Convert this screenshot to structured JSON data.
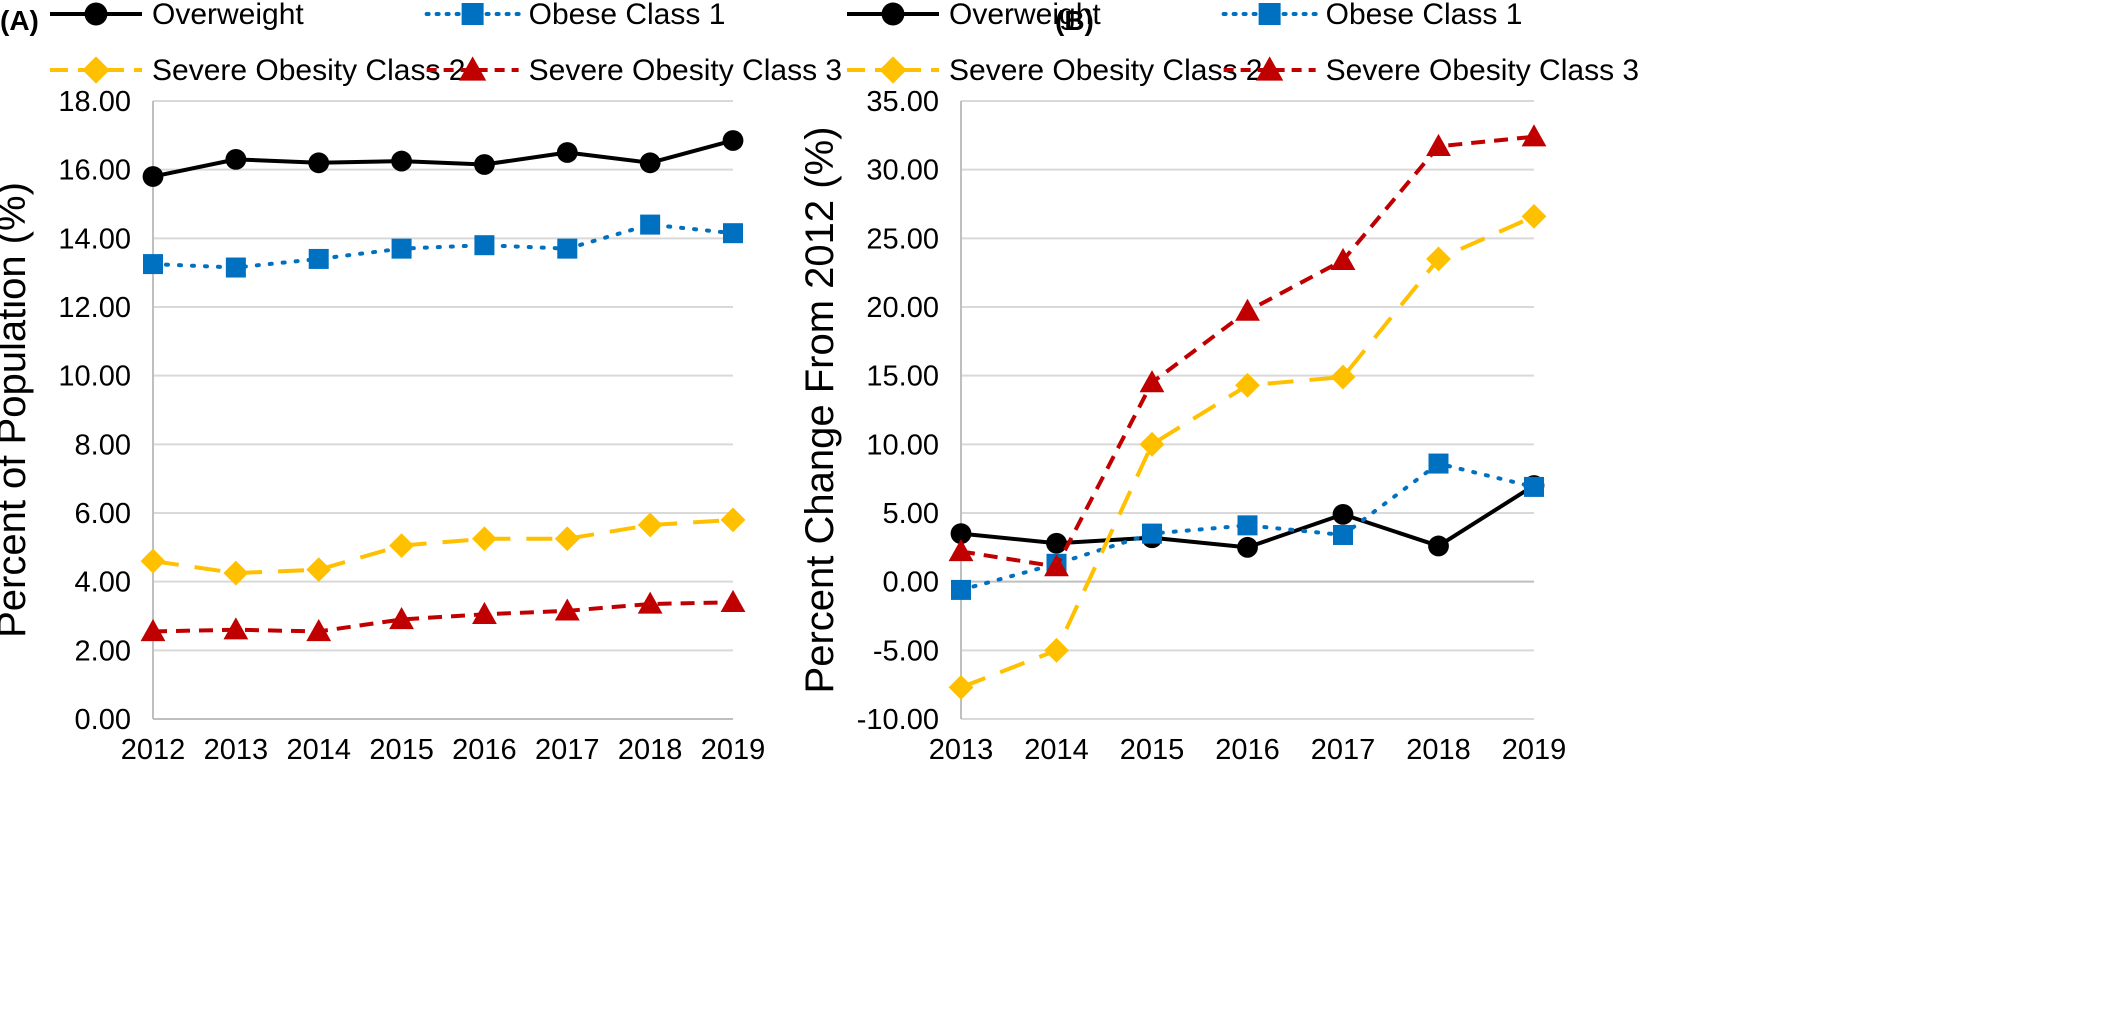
{
  "chart_data": [
    {
      "panel_label": "(A)",
      "type": "line",
      "ylabel": "Percent of Population (%)",
      "xlabel": "",
      "x": [
        "2012",
        "2013",
        "2014",
        "2015",
        "2016",
        "2017",
        "2018",
        "2019"
      ],
      "ylim": [
        0,
        18
      ],
      "ytick_step": 2,
      "ytick_labels": [
        "0.00",
        "2.00",
        "4.00",
        "6.00",
        "8.00",
        "10.00",
        "12.00",
        "14.00",
        "16.00",
        "18.00"
      ],
      "grid": "horizontal",
      "legend_position": "top",
      "series": [
        {
          "name": "Overweight",
          "values": [
            15.8,
            16.3,
            16.2,
            16.25,
            16.15,
            16.5,
            16.2,
            16.85
          ]
        },
        {
          "name": "Obese Class 1",
          "values": [
            13.25,
            13.15,
            13.4,
            13.7,
            13.8,
            13.7,
            14.4,
            14.15
          ]
        },
        {
          "name": "Severe Obesity Class 2",
          "values": [
            4.6,
            4.25,
            4.35,
            5.05,
            5.25,
            5.25,
            5.65,
            5.8
          ]
        },
        {
          "name": "Severe Obesity Class 3",
          "values": [
            2.55,
            2.6,
            2.55,
            2.9,
            3.05,
            3.15,
            3.35,
            3.4
          ]
        }
      ]
    },
    {
      "panel_label": "(B)",
      "type": "line",
      "ylabel": "Percent Change From 2012 (%)",
      "xlabel": "",
      "x": [
        "2013",
        "2014",
        "2015",
        "2016",
        "2017",
        "2018",
        "2019"
      ],
      "ylim": [
        -10,
        35
      ],
      "ytick_step": 5,
      "ytick_labels": [
        "-10.00",
        "-5.00",
        "0.00",
        "5.00",
        "10.00",
        "15.00",
        "20.00",
        "25.00",
        "30.00",
        "35.00"
      ],
      "grid": "horizontal",
      "legend_position": "top",
      "series": [
        {
          "name": "Overweight",
          "values": [
            3.5,
            2.8,
            3.2,
            2.5,
            4.9,
            2.6,
            7.0
          ]
        },
        {
          "name": "Obese Class 1",
          "values": [
            -0.6,
            1.3,
            3.5,
            4.1,
            3.4,
            8.6,
            6.9
          ]
        },
        {
          "name": "Severe Obesity Class 2",
          "values": [
            -7.7,
            -5.0,
            10.0,
            14.3,
            14.9,
            23.5,
            26.6
          ]
        },
        {
          "name": "Severe Obesity Class 3",
          "values": [
            2.2,
            1.1,
            14.5,
            19.7,
            23.4,
            31.7,
            32.4
          ]
        }
      ]
    }
  ],
  "colors": {
    "Overweight": "#000000",
    "Obese Class 1": "#0070C0",
    "Severe Obesity Class 2": "#FFC000",
    "Severe Obesity Class 3": "#C00000",
    "grid": "#d9d9d9",
    "axis": "#bfbfbf"
  },
  "markers": {
    "Overweight": "circle",
    "Obese Class 1": "square",
    "Severe Obesity Class 2": "diamond",
    "Severe Obesity Class 3": "triangle"
  },
  "line_styles": {
    "Overweight": "solid",
    "Obese Class 1": "dotted",
    "Severe Obesity Class 2": "long-dash",
    "Severe Obesity Class 3": "dash"
  }
}
